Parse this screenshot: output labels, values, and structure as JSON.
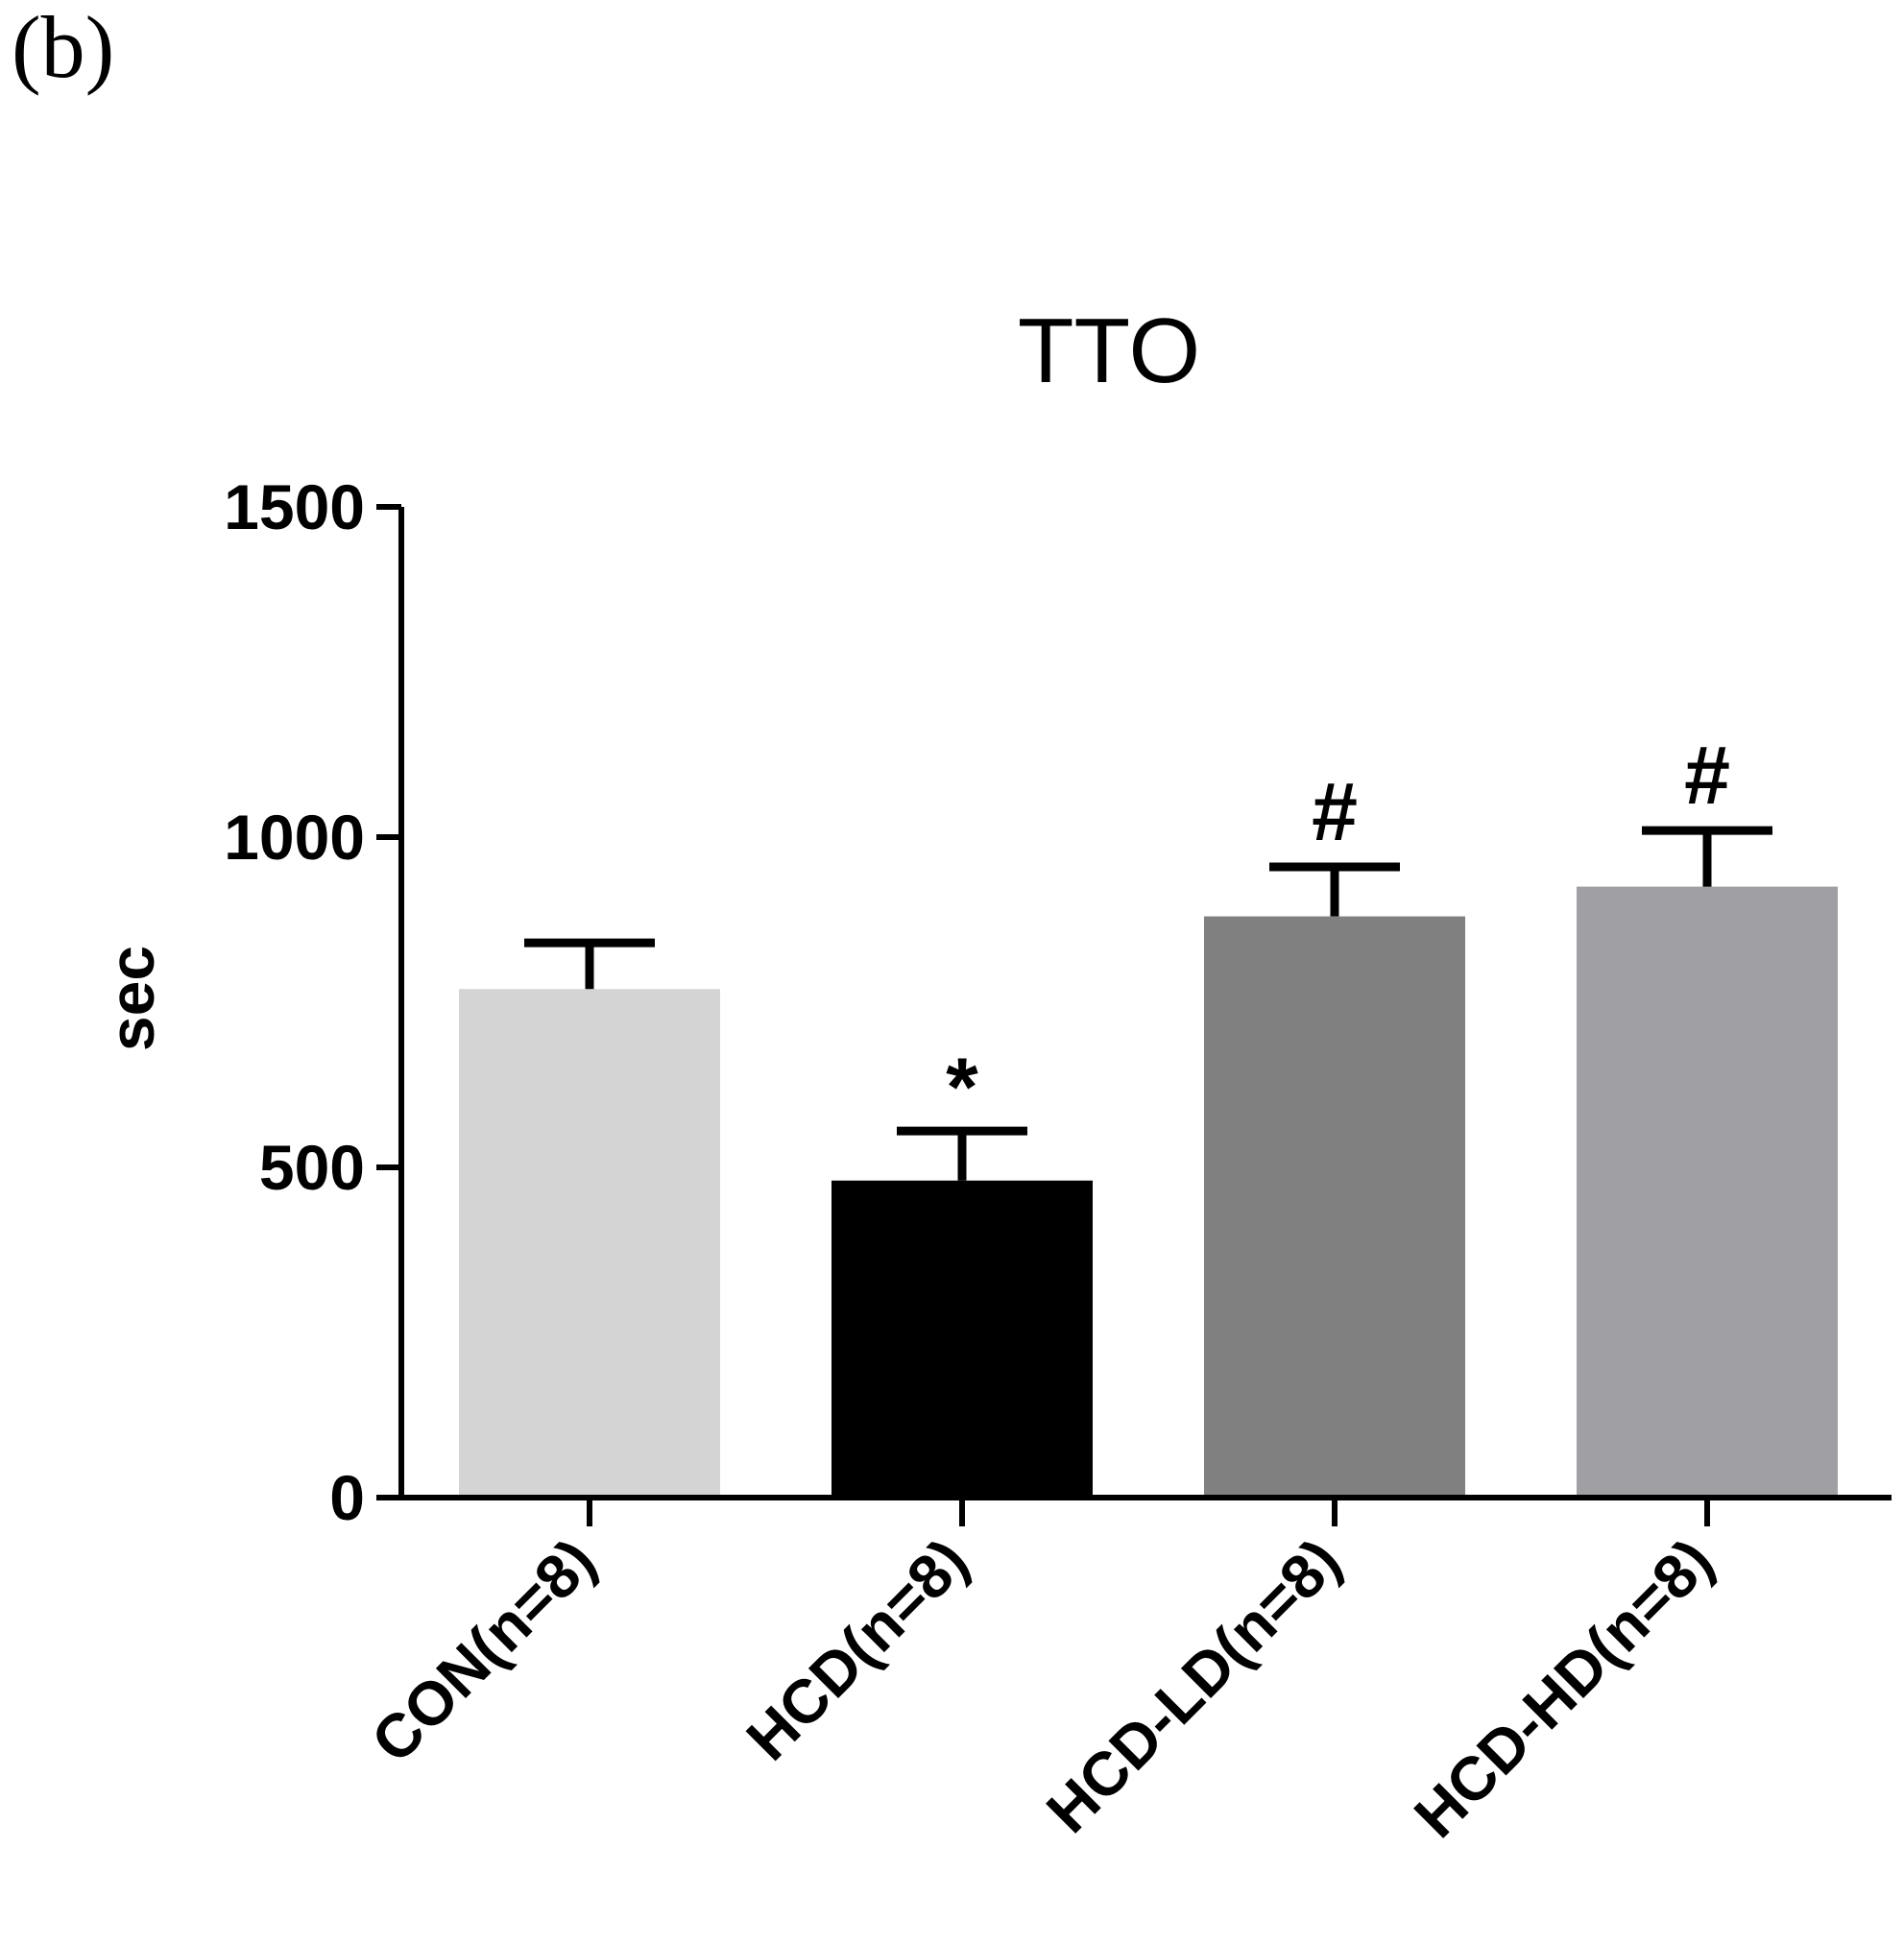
{
  "panel_label": "(b)",
  "chart_data": {
    "type": "bar",
    "title": "TTO",
    "xlabel": "",
    "ylabel": "sec",
    "ylim": [
      0,
      1500
    ],
    "yticks": [
      0,
      500,
      1000,
      1500
    ],
    "categories": [
      "CON(n=8)",
      "HCD(n=8)",
      "HCD-LD(n=8)",
      "HCD-HD(n=8)"
    ],
    "values": [
      770,
      480,
      880,
      925
    ],
    "errors": [
      70,
      75,
      75,
      85
    ],
    "bar_colors": [
      "#d4d4d4",
      "#000000",
      "#808080",
      "#a0a0a4"
    ],
    "annotations": [
      "",
      "*",
      "#",
      "#"
    ],
    "grid": false,
    "legend": "none"
  }
}
